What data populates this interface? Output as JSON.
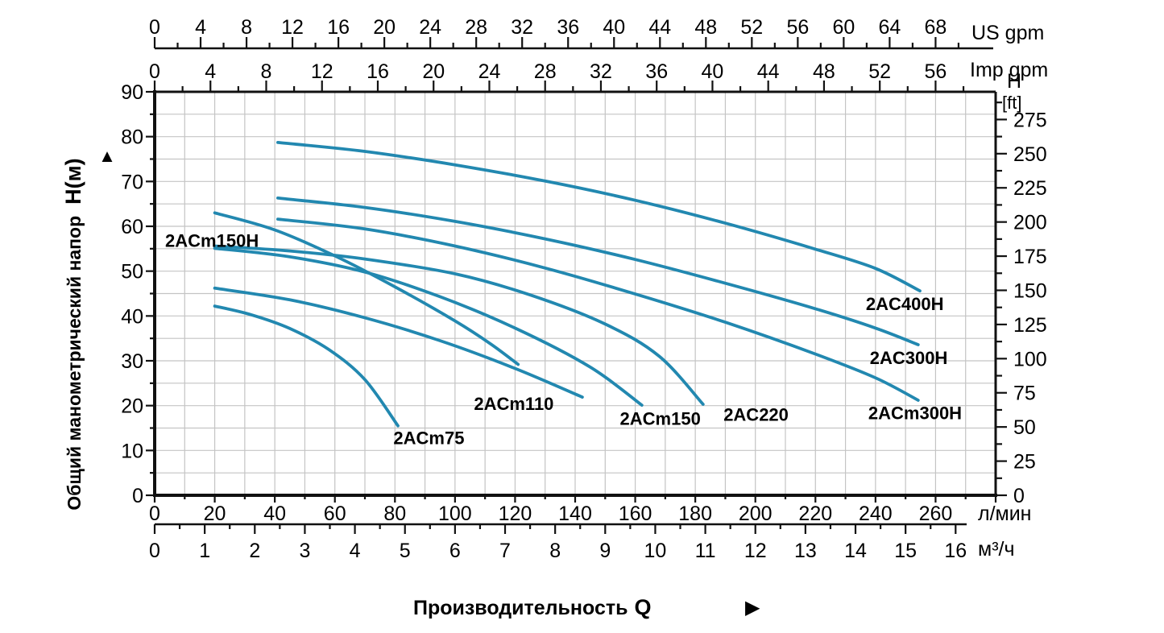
{
  "chart_data": {
    "type": "line",
    "title": "",
    "x_axes": {
      "us_gpm": {
        "unit": "US gpm",
        "tick_labels": [
          0,
          4,
          8,
          12,
          16,
          20,
          24,
          28,
          32,
          36,
          40,
          44,
          48,
          52,
          56,
          60,
          64,
          68
        ],
        "label_step": 4,
        "minor_step": 2,
        "max_labeled": 68,
        "max_minor": 70,
        "aligned_to_lmin": 260
      },
      "imp_gpm": {
        "unit": "Imp gpm",
        "tick_labels": [
          0,
          4,
          8,
          12,
          16,
          20,
          24,
          28,
          32,
          36,
          40,
          44,
          48,
          52,
          56
        ],
        "label_step": 4,
        "minor_step": 2,
        "max_labeled": 56,
        "max_minor": 58,
        "aligned_to_lmin": 260
      },
      "lmin": {
        "unit": "л/мин",
        "tick_labels": [
          0,
          20,
          40,
          60,
          80,
          100,
          120,
          140,
          160,
          180,
          200,
          220,
          240,
          260
        ],
        "label_step": 20,
        "minor_step": 10,
        "axis_max": 280
      },
      "m3h": {
        "unit": "м³/ч",
        "tick_labels": [
          0,
          1,
          2,
          3,
          4,
          5,
          6,
          7,
          8,
          9,
          10,
          11,
          12,
          13,
          14,
          15,
          16
        ],
        "label_step": 1,
        "minor_step": 0.5,
        "lmin_per_unit": 16.667
      }
    },
    "y_axes": {
      "meters": {
        "unit_title": "Общий манометрический напор",
        "unit_symbol": "H(м)",
        "arrow": "▲",
        "tick_labels": [
          0,
          10,
          20,
          30,
          40,
          50,
          60,
          70,
          80,
          90
        ],
        "label_step": 10,
        "minor_step": 5,
        "min": 0,
        "max": 90
      },
      "feet": {
        "unit_line1": "H",
        "unit_line2": "[ft]",
        "tick_labels": [
          0,
          25,
          50,
          75,
          100,
          125,
          150,
          175,
          200,
          225,
          250,
          275
        ],
        "label_step": 25,
        "minor_step": 12.5,
        "max_tick": 287.5,
        "m_per_ft": 0.3048
      }
    },
    "x_title": "Производительность Q",
    "x_title_arrow": "▶",
    "grid": {
      "on": true,
      "q_step_lmin": 10,
      "h_step_m": 5
    },
    "series": [
      {
        "name": "2AC400H",
        "label_q": 236.8,
        "label_h": 41.3,
        "points": [
          [
            41,
            78.7
          ],
          [
            70,
            76.7
          ],
          [
            100,
            73.7
          ],
          [
            130,
            70.1
          ],
          [
            160,
            65.8
          ],
          [
            190,
            60.7
          ],
          [
            220,
            54.9
          ],
          [
            240,
            50.6
          ],
          [
            254.8,
            45.6
          ]
        ]
      },
      {
        "name": "2AC300H",
        "label_q": 238.1,
        "label_h": 29.3,
        "points": [
          [
            41,
            66.3
          ],
          [
            70,
            64.2
          ],
          [
            100,
            61.1
          ],
          [
            130,
            57.2
          ],
          [
            160,
            52.6
          ],
          [
            190,
            47.3
          ],
          [
            220,
            41.6
          ],
          [
            240,
            37.3
          ],
          [
            254.2,
            33.6
          ]
        ]
      },
      {
        "name": "2ACm300H",
        "label_q": 237.6,
        "label_h": 17.0,
        "points": [
          [
            41,
            61.6
          ],
          [
            70,
            59.4
          ],
          [
            100,
            55.6
          ],
          [
            130,
            50.7
          ],
          [
            160,
            44.9
          ],
          [
            190,
            38.6
          ],
          [
            220,
            31.5
          ],
          [
            240,
            26.2
          ],
          [
            254.2,
            21.2
          ]
        ]
      },
      {
        "name": "2AC220",
        "label_q": 189.4,
        "label_h": 16.6,
        "points": [
          [
            20,
            55.6
          ],
          [
            45,
            54.5
          ],
          [
            70,
            52.7
          ],
          [
            100,
            49.4
          ],
          [
            125,
            44.7
          ],
          [
            150,
            38.2
          ],
          [
            168,
            31.0
          ],
          [
            182.6,
            20.3
          ]
        ]
      },
      {
        "name": "2ACm150",
        "label_q": 154.9,
        "label_h": 15.7,
        "points": [
          [
            20,
            55.1
          ],
          [
            45,
            53.2
          ],
          [
            70,
            49.8
          ],
          [
            95,
            44.3
          ],
          [
            120,
            37.3
          ],
          [
            145,
            28.6
          ],
          [
            162.2,
            20.1
          ]
        ]
      },
      {
        "name": "2ACm150H",
        "label_q": 3.5,
        "label_h": 55.4,
        "points": [
          [
            20,
            63.0
          ],
          [
            40,
            59.2
          ],
          [
            60,
            53.4
          ],
          [
            80,
            46.5
          ],
          [
            100,
            38.9
          ],
          [
            112,
            33.7
          ],
          [
            121,
            29.2
          ]
        ]
      },
      {
        "name": "2ACm110",
        "label_q": 106.3,
        "label_h": 19.0,
        "points": [
          [
            20,
            46.2
          ],
          [
            45,
            43.6
          ],
          [
            70,
            39.6
          ],
          [
            95,
            34.5
          ],
          [
            120,
            28.3
          ],
          [
            142.4,
            21.9
          ]
        ]
      },
      {
        "name": "2ACm75",
        "label_q": 79.5,
        "label_h": 11.4,
        "points": [
          [
            20,
            42.2
          ],
          [
            32,
            40.3
          ],
          [
            45,
            37.2
          ],
          [
            58,
            32.5
          ],
          [
            70,
            25.8
          ],
          [
            81,
            15.5
          ]
        ]
      }
    ],
    "colors": {
      "curve": "#2288b0",
      "grid": "#c4c4c4",
      "axis": "#111111",
      "text": "#000000",
      "background": "#ffffff"
    }
  }
}
